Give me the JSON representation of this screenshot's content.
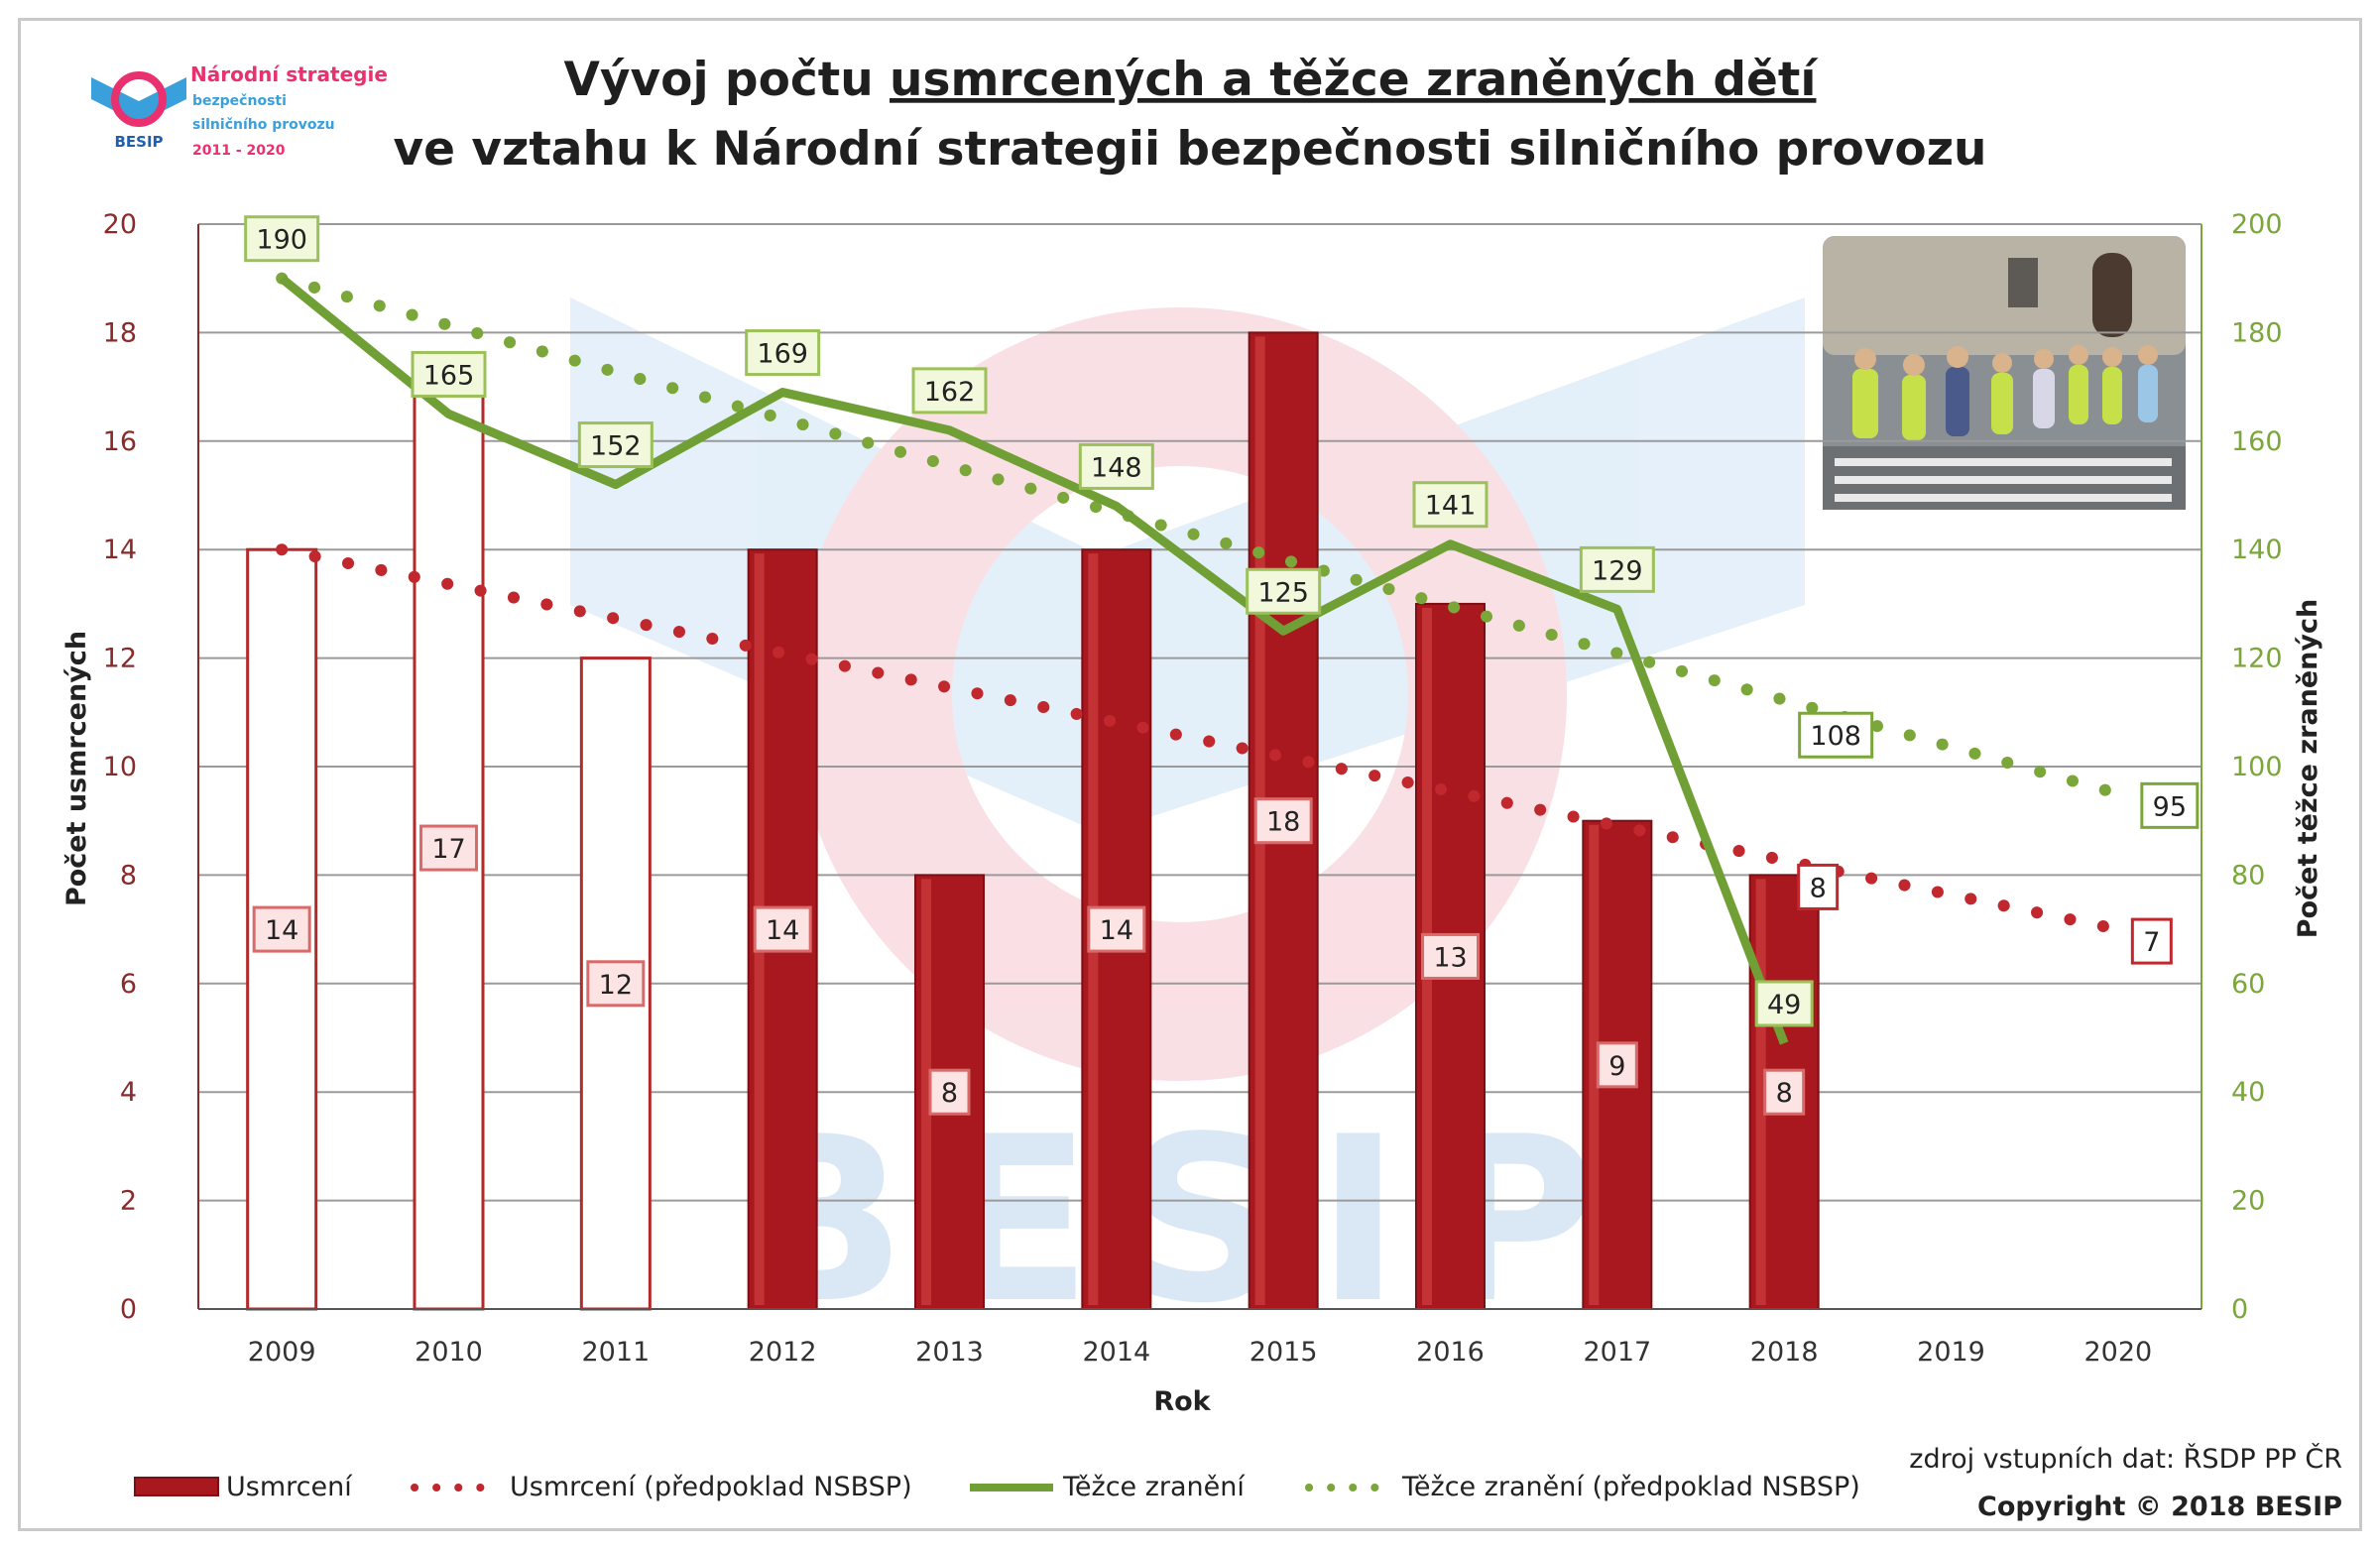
{
  "title": {
    "prefix": "Vývoj počtu ",
    "underlined": "usmrcených a těžce zraněných dětí",
    "line2": "ve vztahu k Národní strategii bezpečnosti silničního provozu"
  },
  "logo": {
    "brand": "BESIP",
    "line1": "Národní strategie",
    "line2": "bezpečnosti",
    "line3": "silničního provozu",
    "line4": "2011 - 2020"
  },
  "watermark": "BESIP",
  "source": "zdroj vstupních dat: ŘSDP PP ČR",
  "copyright": "Copyright © 2018 BESIP",
  "colors": {
    "bar_fill": "#a8181e",
    "bar_outline": "#b22a2a",
    "red_dotted": "#c0282d",
    "green": "#70a035",
    "green_dotted": "#7aa63a",
    "left_axis": "#8a2a2a",
    "right_axis": "#7aa63a"
  },
  "chart_data": {
    "type": "bar",
    "categories": [
      "2009",
      "2010",
      "2011",
      "2012",
      "2013",
      "2014",
      "2015",
      "2016",
      "2017",
      "2018",
      "2019",
      "2020"
    ],
    "xlabel": "Rok",
    "ylabel": "Počet usmrcených",
    "y2label": "Počet těžce zraněných",
    "ylim": [
      0,
      20
    ],
    "y2lim": [
      0,
      200
    ],
    "yticks": [
      0,
      2,
      4,
      6,
      8,
      10,
      12,
      14,
      16,
      18,
      20
    ],
    "y2ticks": [
      0,
      20,
      40,
      60,
      80,
      100,
      120,
      140,
      160,
      180,
      200
    ],
    "grid": true,
    "legend_position": "bottom",
    "series": [
      {
        "name": "Usmrcení",
        "type": "bar",
        "axis": "left",
        "values": [
          14,
          17,
          12,
          14,
          8,
          14,
          18,
          13,
          9,
          8,
          null,
          null
        ],
        "style": [
          "outline",
          "outline",
          "outline",
          "filled",
          "filled",
          "filled",
          "filled",
          "filled",
          "filled",
          "filled",
          null,
          null
        ],
        "labels": [
          "14",
          "17",
          "12",
          "14",
          "8",
          "14",
          "18",
          "13",
          "9",
          "8",
          null,
          null
        ]
      },
      {
        "name": "Usmrcení (předpoklad NSBSP)",
        "type": "dotted-line",
        "axis": "left",
        "values": [
          14,
          null,
          null,
          null,
          null,
          null,
          null,
          null,
          null,
          null,
          null,
          7
        ],
        "labels": [
          {
            "x": "2018",
            "y": 8,
            "text": "8"
          },
          {
            "x": "2020",
            "y": 7,
            "text": "7"
          }
        ]
      },
      {
        "name": "Těžce zranění",
        "type": "line",
        "axis": "right",
        "values": [
          190,
          165,
          152,
          169,
          162,
          148,
          125,
          141,
          129,
          49,
          null,
          null
        ],
        "labels": [
          "190",
          "165",
          "152",
          "169",
          "162",
          "148",
          "125",
          "141",
          "129",
          "49",
          null,
          null
        ]
      },
      {
        "name": "Těžce zranění (předpoklad NSBSP)",
        "type": "dotted-line",
        "axis": "right",
        "values": [
          190,
          null,
          null,
          null,
          null,
          null,
          null,
          null,
          null,
          null,
          null,
          95
        ],
        "labels": [
          {
            "x": "2018",
            "y": 108,
            "text": "108"
          },
          {
            "x": "2020",
            "y": 95,
            "text": "95"
          }
        ]
      }
    ]
  }
}
